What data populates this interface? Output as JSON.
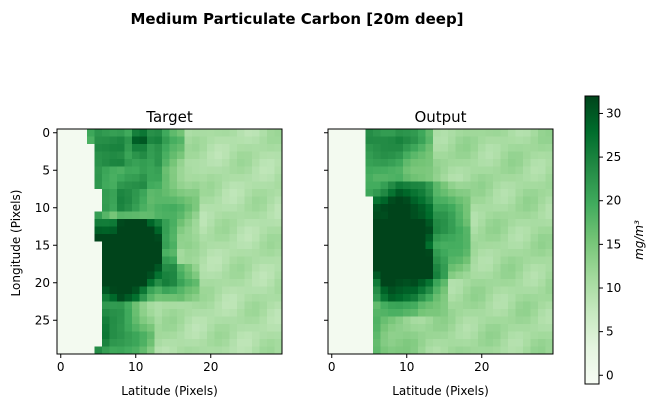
{
  "chart_data": {
    "type": "heatmap",
    "title": "Medium Particulate Carbon [20m deep]",
    "colormap": "Greens",
    "grid_size": [
      30,
      30
    ],
    "color_range": [
      -1,
      32
    ],
    "colorbar": {
      "label": "mg/m³",
      "ticks": [
        0,
        5,
        10,
        15,
        20,
        25,
        30
      ],
      "tick_labels": [
        "0",
        "5",
        "10",
        "15",
        "20",
        "25",
        "30"
      ]
    },
    "x_ticks": [
      0,
      10,
      20
    ],
    "x_tick_labels": [
      "0",
      "10",
      "20"
    ],
    "y_ticks": [
      0,
      5,
      10,
      15,
      20,
      25
    ],
    "y_tick_labels": [
      "0",
      "5",
      "10",
      "15",
      "20",
      "25"
    ],
    "panels": [
      {
        "title": "Target",
        "xlabel": "Latitude (Pixels)",
        "ylabel": "Longitude (Pixels)",
        "coast_columns": [
          4,
          4,
          5,
          5,
          5,
          5,
          5,
          5,
          6,
          6,
          6,
          5,
          5,
          5,
          5,
          6,
          6,
          6,
          6,
          6,
          6,
          6,
          6,
          6,
          6,
          6,
          6,
          6,
          6,
          5
        ],
        "hotspots": [
          [
            8,
            1,
            3,
            4
          ],
          [
            13,
            1,
            3,
            5
          ],
          [
            8,
            7,
            3,
            2
          ],
          [
            13,
            10,
            5,
            3
          ],
          [
            9,
            16,
            4,
            7
          ],
          [
            10,
            17,
            5,
            6
          ],
          [
            8,
            19,
            3,
            5
          ],
          [
            16,
            20,
            2,
            4
          ],
          [
            11,
            5,
            2,
            2
          ],
          [
            8,
            27,
            4,
            3
          ]
        ],
        "land_value": 0,
        "coast_band_value": 20,
        "offshore_value": 10
      },
      {
        "title": "Output",
        "xlabel": "Latitude (Pixels)",
        "ylabel": "",
        "coast_columns": [
          5,
          5,
          5,
          5,
          5,
          5,
          5,
          5,
          5,
          6,
          6,
          6,
          6,
          6,
          6,
          6,
          6,
          6,
          6,
          6,
          6,
          6,
          6,
          6,
          6,
          6,
          6,
          6,
          6,
          6
        ],
        "hotspots": [
          [
            9,
            1,
            4,
            4
          ],
          [
            9,
            10,
            4,
            4
          ],
          [
            8,
            17,
            5,
            5
          ],
          [
            12,
            13,
            6,
            5
          ],
          [
            11,
            20,
            4,
            4
          ]
        ],
        "land_value": 0,
        "coast_band_value": 18,
        "offshore_value": 11
      }
    ]
  }
}
